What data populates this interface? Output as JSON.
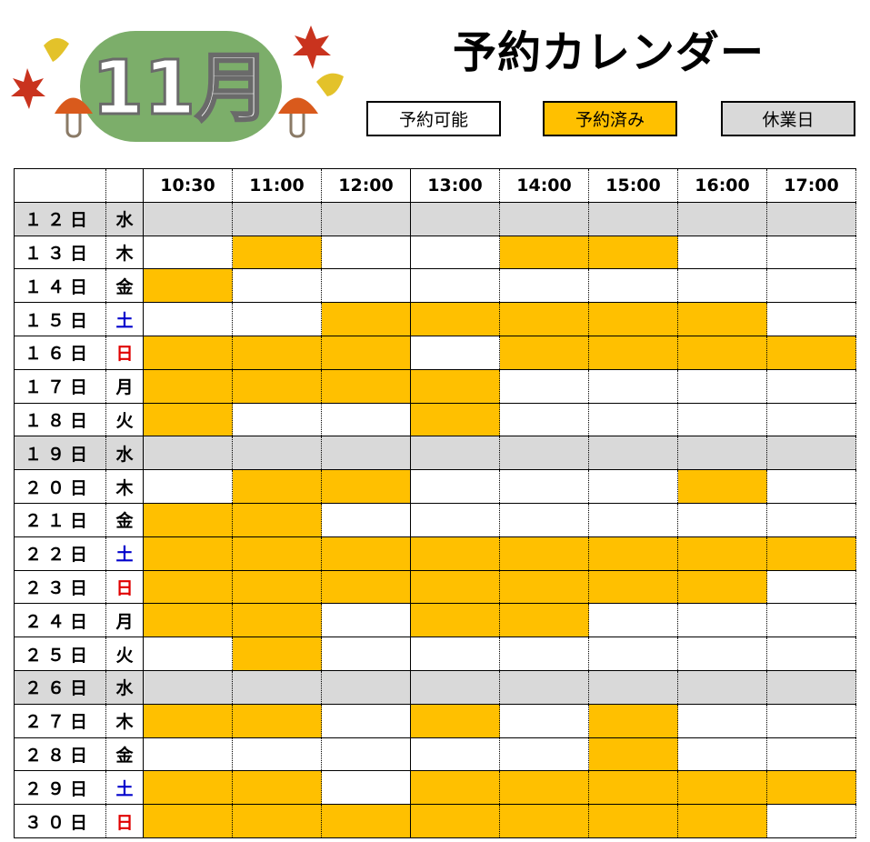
{
  "logo": {
    "month_text": "11月"
  },
  "title": "予約カレンダー",
  "legend": [
    {
      "label": "予約可能",
      "color": "#ffffff"
    },
    {
      "label": "予約済み",
      "color": "#ffc000"
    },
    {
      "label": "休業日",
      "color": "#d9d9d9"
    }
  ],
  "colors": {
    "booked": "#ffc000",
    "closed": "#d9d9d9",
    "saturday": "#0000cc",
    "sunday": "#e00000"
  },
  "times": [
    "10:30",
    "11:00",
    "12:00",
    "13:00",
    "14:00",
    "15:00",
    "16:00",
    "17:00"
  ],
  "rows": [
    {
      "date": "１２日",
      "dow": "水",
      "closed": true,
      "slots": [
        0,
        0,
        0,
        0,
        0,
        0,
        0,
        0
      ]
    },
    {
      "date": "１３日",
      "dow": "木",
      "slots": [
        0,
        1,
        0,
        0,
        1,
        1,
        0,
        0
      ]
    },
    {
      "date": "１４日",
      "dow": "金",
      "slots": [
        1,
        0,
        0,
        0,
        0,
        0,
        0,
        0
      ]
    },
    {
      "date": "１５日",
      "dow": "土",
      "slots": [
        0,
        0,
        1,
        1,
        1,
        1,
        1,
        0
      ]
    },
    {
      "date": "１６日",
      "dow": "日",
      "slots": [
        1,
        1,
        1,
        0,
        1,
        1,
        1,
        1
      ]
    },
    {
      "date": "１７日",
      "dow": "月",
      "slots": [
        1,
        1,
        1,
        1,
        0,
        0,
        0,
        0
      ]
    },
    {
      "date": "１８日",
      "dow": "火",
      "slots": [
        1,
        0,
        0,
        1,
        0,
        0,
        0,
        0
      ]
    },
    {
      "date": "１９日",
      "dow": "水",
      "closed": true,
      "slots": [
        0,
        0,
        0,
        0,
        0,
        0,
        0,
        0
      ]
    },
    {
      "date": "２０日",
      "dow": "木",
      "slots": [
        0,
        1,
        1,
        0,
        0,
        0,
        1,
        0
      ]
    },
    {
      "date": "２１日",
      "dow": "金",
      "slots": [
        1,
        1,
        0,
        0,
        0,
        0,
        0,
        0
      ]
    },
    {
      "date": "２２日",
      "dow": "土",
      "slots": [
        1,
        1,
        1,
        1,
        1,
        1,
        1,
        1
      ]
    },
    {
      "date": "２３日",
      "dow": "日",
      "slots": [
        1,
        1,
        1,
        1,
        1,
        1,
        1,
        0
      ]
    },
    {
      "date": "２４日",
      "dow": "月",
      "slots": [
        1,
        1,
        0,
        1,
        1,
        0,
        0,
        0
      ]
    },
    {
      "date": "２５日",
      "dow": "火",
      "slots": [
        0,
        1,
        0,
        0,
        0,
        0,
        0,
        0
      ]
    },
    {
      "date": "２６日",
      "dow": "水",
      "closed": true,
      "slots": [
        0,
        0,
        0,
        0,
        0,
        0,
        0,
        0
      ]
    },
    {
      "date": "２７日",
      "dow": "木",
      "slots": [
        1,
        1,
        0,
        1,
        0,
        1,
        0,
        0
      ]
    },
    {
      "date": "２８日",
      "dow": "金",
      "slots": [
        0,
        0,
        0,
        0,
        0,
        1,
        0,
        0
      ]
    },
    {
      "date": "２９日",
      "dow": "土",
      "slots": [
        1,
        1,
        0,
        1,
        1,
        1,
        1,
        1
      ]
    },
    {
      "date": "３０日",
      "dow": "日",
      "slots": [
        1,
        1,
        1,
        1,
        1,
        1,
        1,
        0
      ]
    }
  ]
}
